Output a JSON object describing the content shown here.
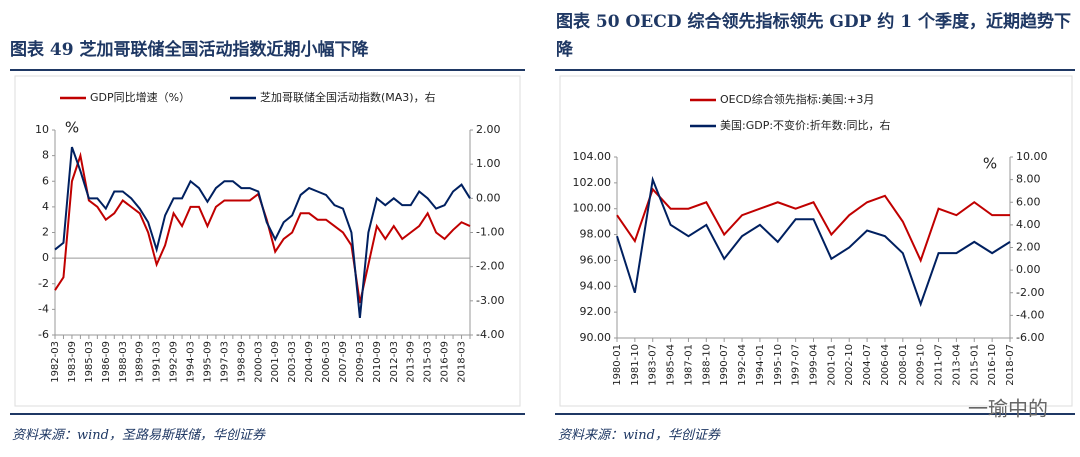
{
  "chart_data": [
    {
      "type": "line",
      "title": "图表 49 芝加哥联储全国活动指数近期小幅下降",
      "annotation": "%",
      "source": "资料来源：wind，圣路易斯联储，华创证券",
      "categories": [
        "1982-03",
        null,
        "1983-09",
        null,
        "1985-03",
        null,
        "1986-09",
        null,
        "1988-03",
        null,
        "1989-09",
        null,
        "1991-03",
        null,
        "1992-09",
        null,
        "1994-03",
        null,
        "1995-09",
        null,
        "1997-03",
        null,
        "1998-09",
        null,
        "2000-03",
        null,
        "2001-09",
        null,
        "2003-03",
        null,
        "2004-09",
        null,
        "2006-03",
        null,
        "2007-09",
        null,
        "2009-03",
        null,
        "2010-09",
        null,
        "2012-03",
        null,
        "2013-09",
        null,
        "2015-03",
        null,
        "2016-09",
        null,
        "2018-03",
        null
      ],
      "series": [
        {
          "name": "GDP同比增速（%）",
          "color": "#c00000",
          "values": [
            -2.5,
            -1.5,
            6,
            8,
            4.5,
            4,
            3,
            3.5,
            4.5,
            4,
            3.5,
            2,
            -0.5,
            1,
            3.5,
            2.5,
            4,
            4,
            2.5,
            4,
            4.5,
            4.5,
            4.5,
            4.5,
            5,
            3,
            0.5,
            1.5,
            2,
            3.5,
            3.5,
            3,
            3,
            2.5,
            2,
            1,
            -3.5,
            -0.5,
            2.5,
            1.5,
            2.5,
            1.5,
            2,
            2.5,
            3.5,
            2,
            1.5,
            2.2,
            2.8,
            2.5
          ]
        },
        {
          "name": "芝加哥联储全国活动指数(MA3)，右",
          "color": "#002060",
          "axis": "y2",
          "values": [
            -1.5,
            -1.3,
            1.5,
            0.8,
            0,
            0,
            -0.3,
            0.2,
            0.2,
            0,
            -0.3,
            -0.7,
            -1.5,
            -0.5,
            0,
            0,
            0.5,
            0.3,
            -0.1,
            0.3,
            0.5,
            0.5,
            0.3,
            0.3,
            0.2,
            -0.7,
            -1.2,
            -0.7,
            -0.5,
            0.1,
            0.3,
            0.2,
            0.1,
            -0.2,
            -0.3,
            -1,
            -3.5,
            -1,
            0,
            -0.2,
            0,
            -0.2,
            -0.2,
            0.2,
            0,
            -0.3,
            -0.2,
            0.2,
            0.4,
            0
          ]
        }
      ],
      "ylim": [
        -6,
        10
      ],
      "yticks": [
        -6,
        -4,
        -2,
        0,
        2,
        4,
        6,
        8,
        10
      ],
      "y2lim": [
        -4,
        2
      ],
      "y2ticks": [
        {
          "value": -4,
          "label": "-4.00"
        },
        {
          "value": -3,
          "label": "-3.00"
        },
        {
          "value": -2,
          "label": "-2.00"
        },
        {
          "value": -1,
          "label": "-1.00"
        },
        {
          "value": 0,
          "label": "0.00"
        },
        {
          "value": 1,
          "label": "1.00"
        },
        {
          "value": 2,
          "label": "2.00"
        }
      ],
      "legend": "top"
    },
    {
      "type": "line",
      "title": "图表 50 OECD 综合领先指标领先 GDP 约 1 个季度，近期趋势下降",
      "annotation": "%",
      "source": "资料来源：wind，华创证券",
      "watermark": "一瑜中的",
      "categories": [
        "1980-01",
        "1981-10",
        "1983-07",
        "1985-04",
        "1987-01",
        "1988-10",
        "1990-07",
        "1992-04",
        "1994-01",
        "1995-10",
        "1997-07",
        "1999-04",
        "2001-01",
        "2002-10",
        "2004-07",
        "2006-04",
        "2008-01",
        "2009-10",
        "2011-07",
        "2013-04",
        "2015-01",
        "2016-10",
        "2018-07"
      ],
      "series": [
        {
          "name": "OECD综合领先指标:美国:+3月",
          "color": "#c00000",
          "values": [
            99.5,
            97.5,
            101.5,
            100,
            100,
            100.5,
            98,
            99.5,
            100,
            100.5,
            100,
            100.5,
            98,
            99.5,
            100.5,
            101,
            99,
            96,
            100,
            99.5,
            100.5,
            99.5,
            99.5
          ]
        },
        {
          "name": "美国:GDP:不变价:折年数:同比，右",
          "color": "#002060",
          "axis": "y2",
          "values": [
            3,
            -2,
            8,
            4,
            3,
            4,
            1,
            3,
            4,
            2.5,
            4.5,
            4.5,
            1,
            2,
            3.5,
            3,
            1.5,
            -3,
            1.5,
            1.5,
            2.5,
            1.5,
            2.5
          ]
        }
      ],
      "ylim": [
        90,
        104
      ],
      "yticks": [
        {
          "value": 90,
          "label": "90.00"
        },
        {
          "value": 92,
          "label": "92.00"
        },
        {
          "value": 94,
          "label": "94.00"
        },
        {
          "value": 96,
          "label": "96.00"
        },
        {
          "value": 98,
          "label": "98.00"
        },
        {
          "value": 100,
          "label": "100.00"
        },
        {
          "value": 102,
          "label": "102.00"
        },
        {
          "value": 104,
          "label": "104.00"
        }
      ],
      "y2lim": [
        -6,
        10
      ],
      "y2ticks": [
        {
          "value": -6,
          "label": "-6.00"
        },
        {
          "value": -4,
          "label": "-4.00"
        },
        {
          "value": -2,
          "label": "-2.00"
        },
        {
          "value": 0,
          "label": "0.00"
        },
        {
          "value": 2,
          "label": "2.00"
        },
        {
          "value": 4,
          "label": "4.00"
        },
        {
          "value": 6,
          "label": "6.00"
        },
        {
          "value": 8,
          "label": "8.00"
        },
        {
          "value": 10,
          "label": "10.00"
        }
      ],
      "legend": "top"
    }
  ]
}
